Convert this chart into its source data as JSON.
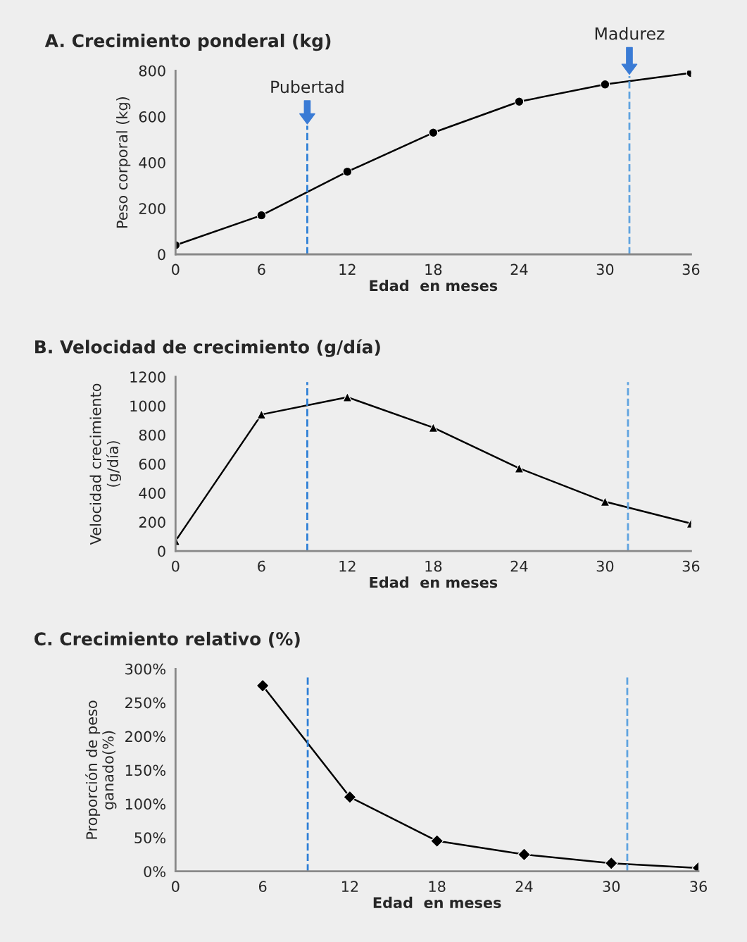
{
  "chart_data": [
    {
      "type": "line",
      "title": "A. Crecimiento ponderal (kg)",
      "xlabel": "Edad  en meses",
      "ylabel": "Peso corporal (kg)",
      "x": [
        0,
        6,
        12,
        18,
        24,
        30,
        36
      ],
      "xlim": [
        0,
        36
      ],
      "xticks": [
        0,
        6,
        12,
        18,
        24,
        30,
        36
      ],
      "ylim": [
        0,
        800
      ],
      "yticks": [
        0,
        200,
        400,
        600,
        800
      ],
      "marker": "circle",
      "grid": false,
      "legend": false,
      "series": [
        {
          "color": "#000000",
          "values": [
            40,
            170,
            360,
            530,
            665,
            740,
            790
          ]
        }
      ],
      "ref_lines": [
        {
          "axis": "x",
          "value": 9.2,
          "label": "Pubertad",
          "color": "#2e7fd6",
          "line_style": "dashed"
        },
        {
          "axis": "x",
          "value": 31.7,
          "label": "Madurez",
          "color": "#5fa3e0",
          "line_style": "dashed"
        }
      ]
    },
    {
      "type": "line",
      "title": "B. Velocidad de crecimiento (g/día)",
      "xlabel": "Edad  en meses",
      "ylabel": "Velocidad crecimiento\n(g/día)",
      "x": [
        0,
        6,
        12,
        18,
        24,
        30,
        36
      ],
      "xlim": [
        0,
        36
      ],
      "xticks": [
        0,
        6,
        12,
        18,
        24,
        30,
        36
      ],
      "ylim": [
        0,
        1200
      ],
      "yticks": [
        0,
        200,
        400,
        600,
        800,
        1000,
        1200
      ],
      "marker": "triangle",
      "grid": false,
      "legend": false,
      "series": [
        {
          "color": "#000000",
          "values": [
            70,
            940,
            1060,
            850,
            570,
            340,
            190
          ]
        }
      ],
      "ref_lines": [
        {
          "axis": "x",
          "value": 9.2,
          "color": "#2e7fd6",
          "line_style": "dashed"
        },
        {
          "axis": "x",
          "value": 31.6,
          "color": "#5fa3e0",
          "line_style": "dashed"
        }
      ]
    },
    {
      "type": "line",
      "title": "C. Crecimiento relativo (%)",
      "xlabel": "Edad  en meses",
      "ylabel": "Proporción de peso\nganado(%)",
      "x": [
        6,
        12,
        18,
        24,
        30,
        36
      ],
      "xlim": [
        0,
        36
      ],
      "xticks": [
        0,
        6,
        12,
        18,
        24,
        30,
        36
      ],
      "ylim": [
        0,
        300
      ],
      "yticks": [
        {
          "value": 0,
          "label": "0%"
        },
        {
          "value": 50,
          "label": "50%"
        },
        {
          "value": 100,
          "label": "100%"
        },
        {
          "value": 150,
          "label": "150%"
        },
        {
          "value": 200,
          "label": "200%"
        },
        {
          "value": 250,
          "label": "250%"
        },
        {
          "value": 300,
          "label": "300%"
        }
      ],
      "marker": "diamond",
      "grid": false,
      "legend": false,
      "series": [
        {
          "color": "#000000",
          "values": [
            275,
            110,
            45,
            25,
            12,
            5
          ]
        }
      ],
      "ref_lines": [
        {
          "axis": "x",
          "value": 9.1,
          "color": "#2e7fd6",
          "line_style": "dashed"
        },
        {
          "axis": "x",
          "value": 31.1,
          "color": "#5fa3e0",
          "line_style": "dashed"
        }
      ]
    }
  ]
}
